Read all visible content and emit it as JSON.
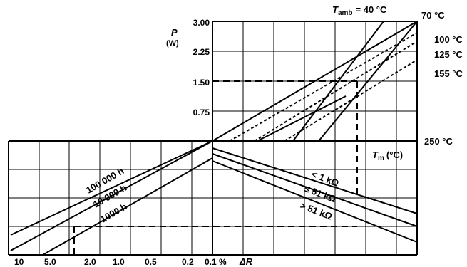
{
  "chart_data": {
    "type": "line",
    "upper_panel": {
      "ylabel": "P",
      "yunit": "(W)",
      "yticks": [
        "3.00",
        "2.25",
        "1.50",
        "0.75"
      ],
      "ylim": [
        0,
        3.0
      ],
      "ambient_label": "T",
      "ambient_sub": "amb",
      "ambient_value": "= 40 °C",
      "xlabel": "T",
      "xsub": "m",
      "xunit": "(°C)",
      "series": [
        {
          "name": "70 °C",
          "style": "solid",
          "t_from": 40,
          "t_to": 250
        },
        {
          "name": "100 °C",
          "style": "dashed",
          "t_from": 40,
          "t_to": 250
        },
        {
          "name": "125 °C",
          "style": "dashed",
          "t_from": 40,
          "t_to": 250
        },
        {
          "name": "155 °C",
          "style": "dashed",
          "t_from": 40,
          "t_to": 250
        },
        {
          "name": "250 °C",
          "style": "solid",
          "t_from": 40,
          "t_to": 250
        }
      ]
    },
    "lower_panel": {
      "xlabel": "ΔR",
      "xticks": [
        "10",
        "5.0",
        "2.0",
        "1.0",
        "0.5",
        "0.2",
        "0.1 %"
      ],
      "lifetime_lines": [
        {
          "name": "100 000 h"
        },
        {
          "name": "10 000 h"
        },
        {
          "name": "1000 h"
        }
      ],
      "resistance_lines": [
        {
          "name": "< 1  kΩ"
        },
        {
          "name": "≤ 51  kΩ"
        },
        {
          "name": "> 51  kΩ"
        }
      ]
    },
    "example_path": {
      "power_w": 1.5,
      "style": "dashed"
    },
    "grid": true
  }
}
